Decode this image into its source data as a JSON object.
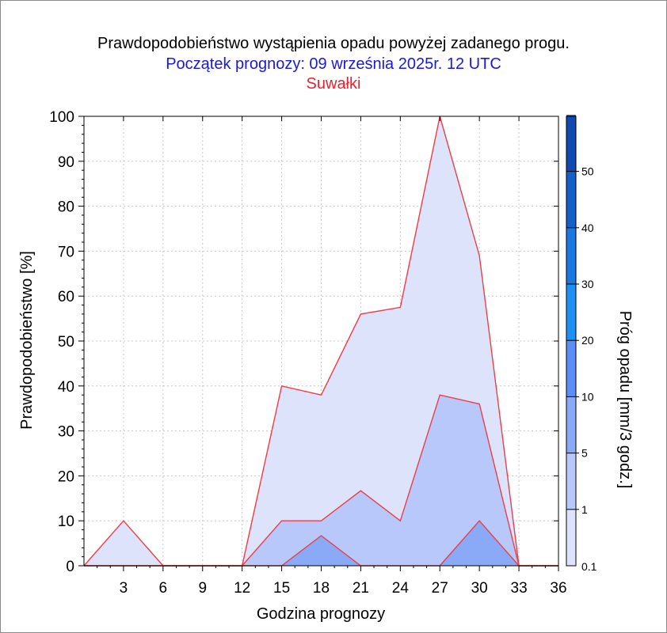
{
  "title": "Prawdopodobieństwo wystąpienia opadu powyżej zadanego progu.",
  "subtitle": "Początek prognozy: 09 września 2025r. 12 UTC",
  "location": "Suwałki",
  "colors": {
    "outline": "#e8404a",
    "title": "#000000",
    "subtitle": "#1a1ad6",
    "location": "#e8222e",
    "grid": "#c8c8c8"
  },
  "chart_data": {
    "type": "area",
    "title": "Prawdopodobieństwo wystąpienia opadu powyżej zadanego progu.",
    "xlabel": "Godzina prognozy",
    "ylabel": "Prawdopodobieństwo [%]",
    "xlim": [
      0,
      36
    ],
    "ylim": [
      0,
      100
    ],
    "xticks": [
      3,
      6,
      9,
      12,
      15,
      18,
      21,
      24,
      27,
      30,
      33,
      36
    ],
    "yticks": [
      0,
      10,
      20,
      30,
      40,
      50,
      60,
      70,
      80,
      90,
      100
    ],
    "grid": true,
    "x": [
      0,
      3,
      6,
      9,
      12,
      15,
      18,
      21,
      24,
      27,
      30,
      33,
      36
    ],
    "series": [
      {
        "threshold": "0.1",
        "color": "#dde3fb",
        "values": [
          0,
          10,
          0,
          0,
          0,
          40,
          38,
          56,
          57.5,
          100,
          69,
          0,
          0
        ]
      },
      {
        "threshold": "1",
        "color": "#b8c8fb",
        "values": [
          0,
          0,
          0,
          0,
          0,
          10,
          10,
          16.7,
          10,
          38,
          36,
          0,
          0
        ]
      },
      {
        "threshold": "5",
        "color": "#8aaaf8",
        "values": [
          0,
          0,
          0,
          0,
          0,
          0,
          6.7,
          0,
          0,
          0,
          10,
          0,
          0
        ]
      }
    ],
    "colorbar": {
      "label": "Próg opadu [mm/3 godz.]",
      "tick_labels": [
        "0.1",
        "1",
        "5",
        "10",
        "20",
        "30",
        "40",
        "50"
      ],
      "band_colors": [
        "#dde3fb",
        "#b8c8fb",
        "#8aaaf8",
        "#5c8ef5",
        "#1e90f4",
        "#1a78e0",
        "#1560c8",
        "#0f4ab0",
        "#0838a0"
      ]
    }
  }
}
